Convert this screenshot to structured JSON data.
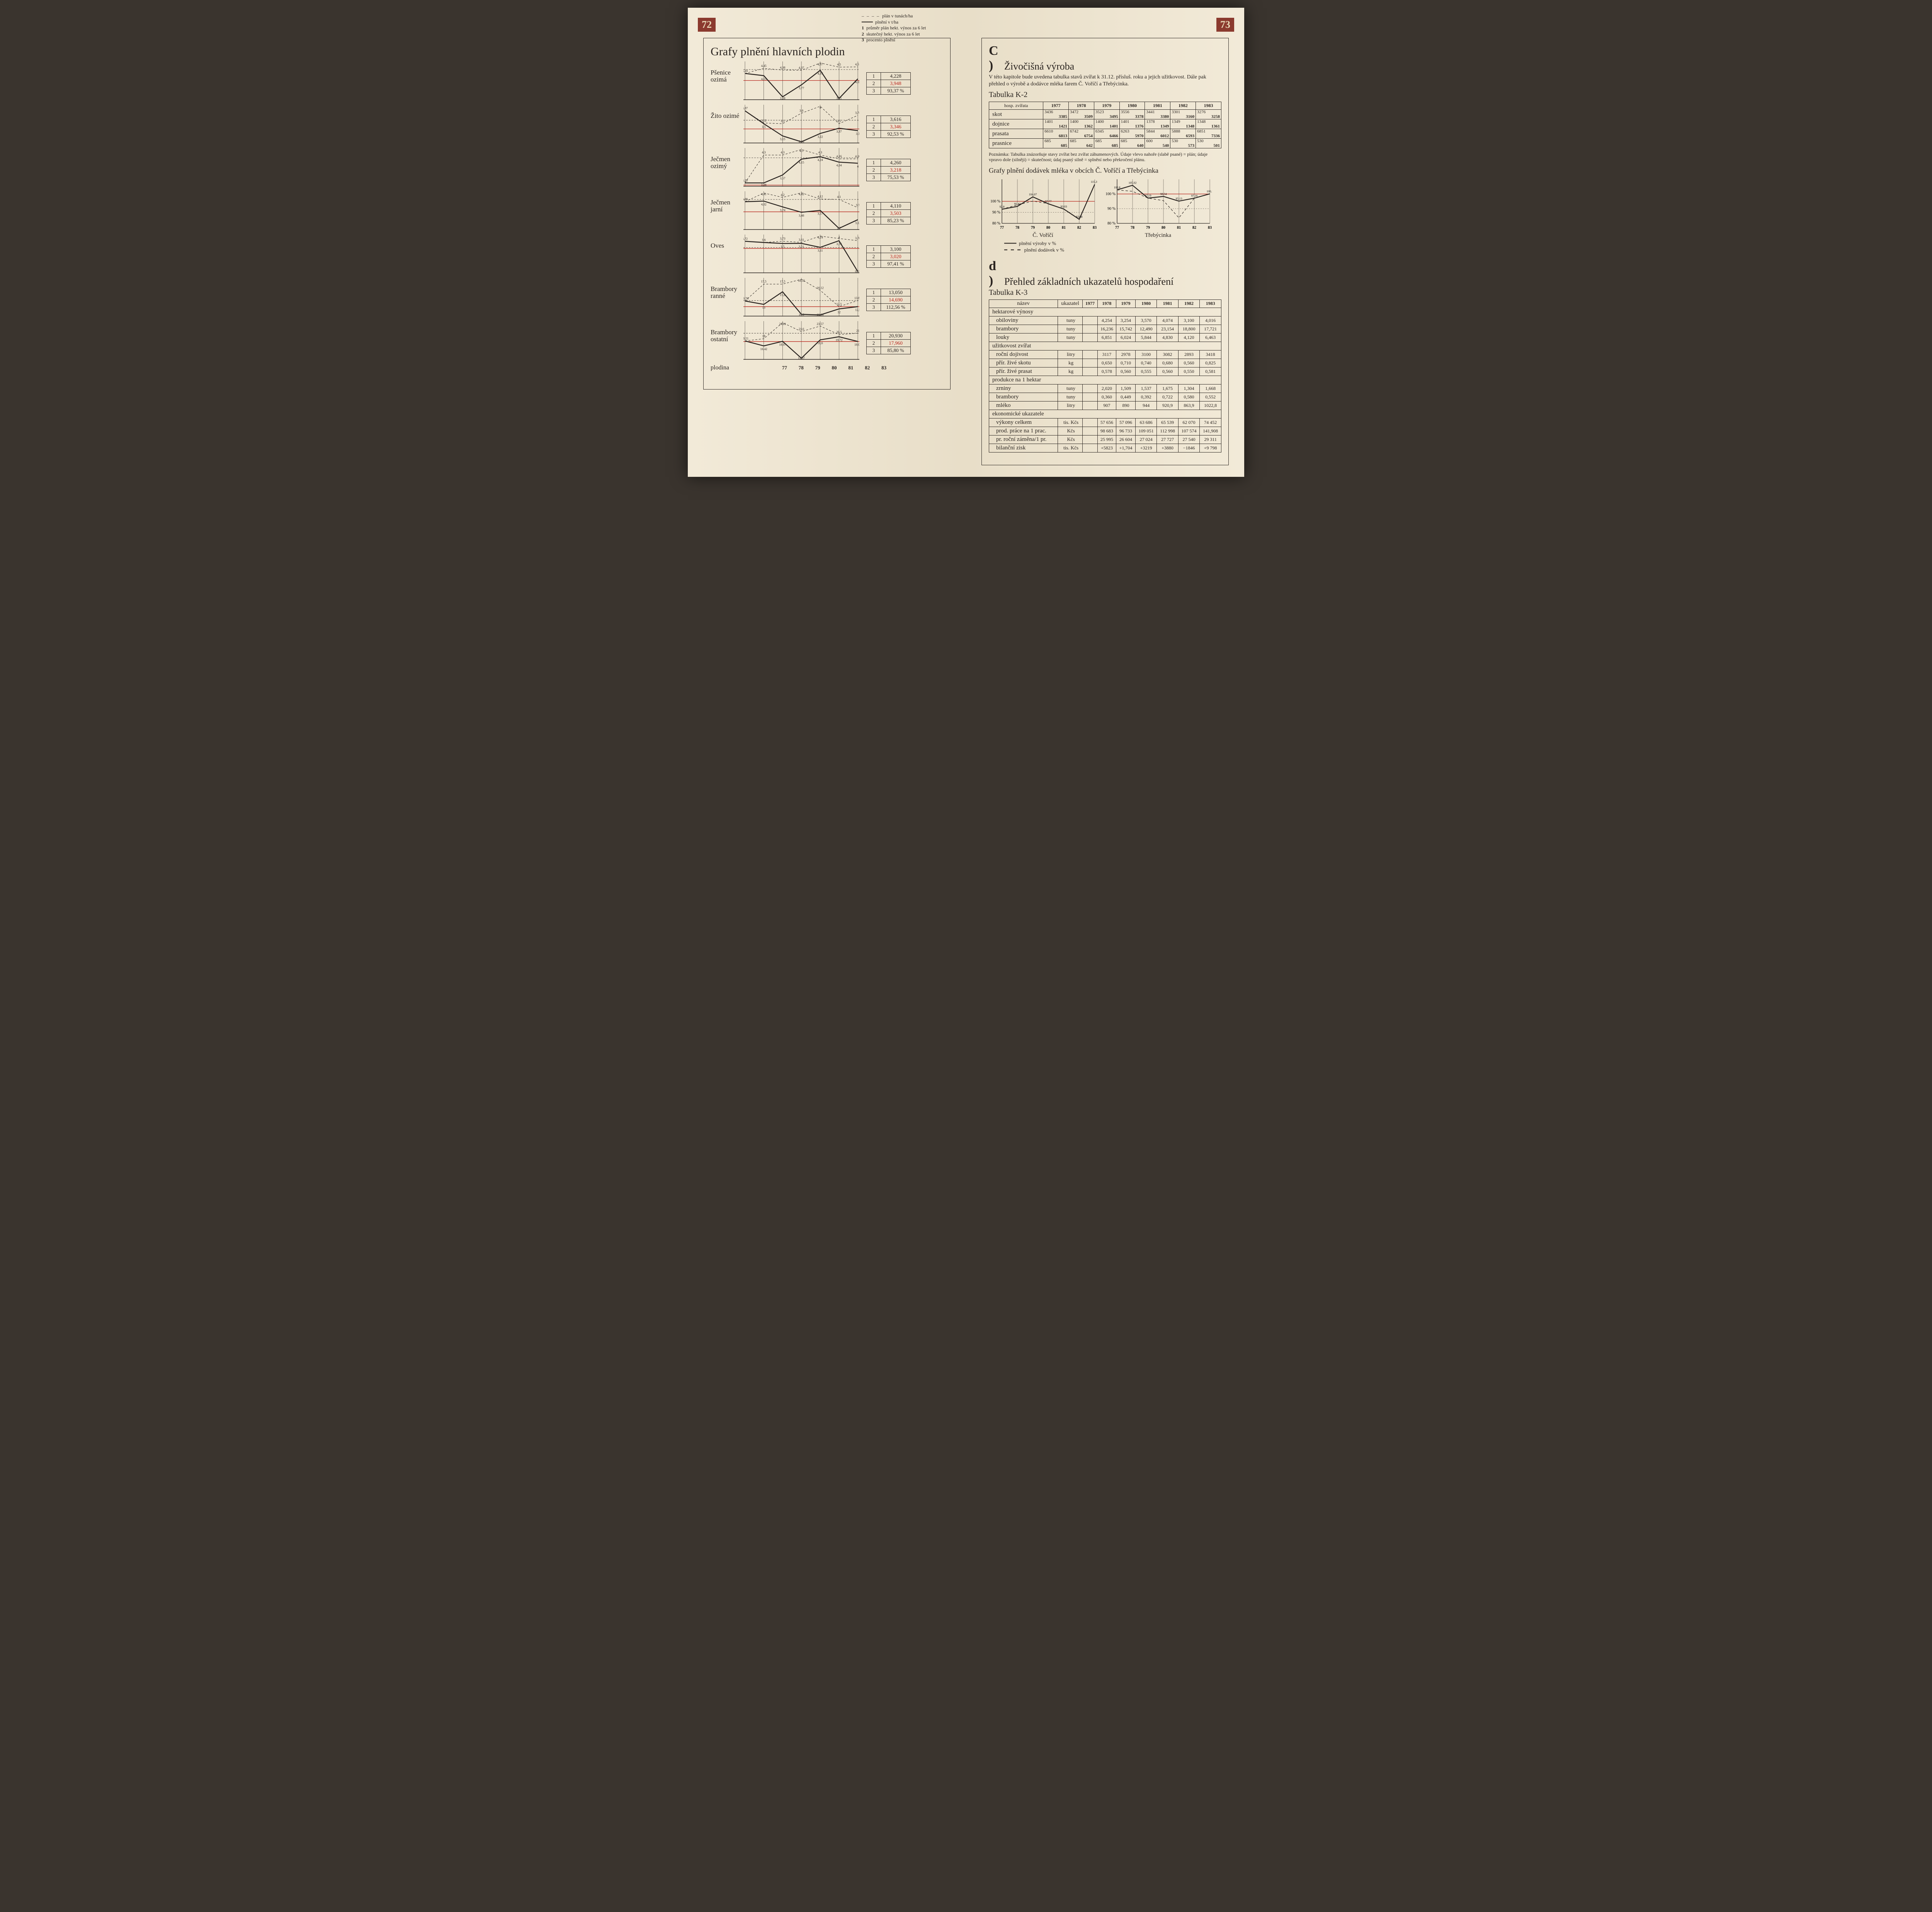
{
  "page_left_num": "72",
  "page_right_num": "73",
  "left_title": "Grafy plnění hlavních plodin",
  "left_legend": {
    "dash": "plán v tunách/ha",
    "solid": "plnění v t/ha",
    "l1": "průměr plán hekt. výnos za 6 let",
    "l2": "skutečný hekt. výnos za 6 let",
    "l3": "procento plnění"
  },
  "x_years": [
    "77",
    "78",
    "79",
    "80",
    "81",
    "82",
    "83"
  ],
  "x_label": "plodina",
  "crops": [
    {
      "name": "Pšenice ozimá",
      "plan": [
        4.24,
        4.45,
        4.38,
        4.37,
        4.67,
        4.5,
        4.51
      ],
      "actual": [
        4.24,
        4.15,
        3.28,
        3.77,
        4.37,
        3.21,
        4.02
      ],
      "ref_plan": 4.4,
      "ref_act": 3.95,
      "box": [
        "4,228",
        "3,948",
        "93,37 %"
      ]
    },
    {
      "name": "Žito ozimé",
      "plan": [
        3.87,
        3.52,
        3.5,
        3.8,
        4.0,
        3.5,
        3.74
      ],
      "actual": [
        3.87,
        3.5,
        3.15,
        2.98,
        3.22,
        3.37,
        3.3
      ],
      "ref_plan": 3.6,
      "ref_act": 3.35,
      "box": [
        "3,616",
        "3,346",
        "92,53 %"
      ]
    },
    {
      "name": "Ječmen ozimý",
      "plan": [
        3.28,
        4.3,
        4.3,
        4.5,
        4.3,
        4.16,
        4.16
      ],
      "actual": [
        3.28,
        3.28,
        3.57,
        4.15,
        4.24,
        4.04,
        4.0
      ],
      "ref_plan": 4.2,
      "ref_act": 3.2,
      "box": [
        "4,260",
        "3,218",
        "75,53 %"
      ]
    },
    {
      "name": "Ječmen jarní",
      "plan": [
        3.99,
        4.41,
        4.2,
        4.42,
        4.12,
        4.1,
        3.7
      ],
      "actual": [
        3.99,
        4.02,
        3.74,
        3.48,
        3.57,
        2.7,
        3.12
      ],
      "ref_plan": 4.1,
      "ref_act": 3.5,
      "box": [
        "4,110",
        "3,503",
        "85,23 %"
      ]
    },
    {
      "name": "Oves",
      "plan": [
        3.72,
        3.6,
        3.73,
        3.61,
        4.24,
        4.0,
        3.78
      ],
      "actual": [
        3.72,
        3.6,
        3.5,
        3.51,
        3.11,
        3.78,
        0.67
      ],
      "ref_plan": 3.1,
      "ref_act": 3.0,
      "box": [
        "3,100",
        "3,020",
        "97,41 %"
      ]
    },
    {
      "name": "Brambory ranné",
      "plan": [
        13.76,
        17.5,
        17.5,
        18.55,
        16.12,
        12.5,
        13.85
      ],
      "actual": [
        13.76,
        13.0,
        15.8,
        10.8,
        10.66,
        12.0,
        12.5
      ],
      "ref_plan": 13.85,
      "ref_act": 12.5,
      "box": [
        "13,050",
        "14,690",
        "112,56 %"
      ]
    },
    {
      "name": "Brambory ostatní",
      "plan": [
        18.21,
        19.0,
        24.81,
        21.6,
        23.57,
        20.5,
        21.0
      ],
      "actual": [
        18.21,
        16.42,
        18.07,
        11.97,
        18.6,
        19.72,
        18.02
      ],
      "ref_plan": 21.0,
      "ref_act": 18.0,
      "box": [
        "20,930",
        "17,960",
        "85,80 %"
      ]
    }
  ],
  "right": {
    "c_letter": "C )",
    "c_title": "Živočišná výroba",
    "c_intro": "V této kapitole bude uvedena tabulka stavů zvířat k 31.12. přísluš. roku a jejich užitkovost. Dále pak přehled o výrobě a dodávce mléka farem Č. Voříčí a Třebýcinka.",
    "k2_title": "Tabulka K-2",
    "k2_headers": [
      "hosp. zvířata",
      "1977",
      "1978",
      "1979",
      "1980",
      "1981",
      "1982",
      "1983"
    ],
    "k2_rows": [
      {
        "name": "skot",
        "cells": [
          [
            "3436",
            "3385"
          ],
          [
            "3472",
            "3509"
          ],
          [
            "3523",
            "3495"
          ],
          [
            "3556",
            "3378"
          ],
          [
            "3441",
            "3380"
          ],
          [
            "3301",
            "3160"
          ],
          [
            "3276",
            "3258"
          ]
        ]
      },
      {
        "name": "dojnice",
        "cells": [
          [
            "1401",
            "1421"
          ],
          [
            "1400",
            "1362"
          ],
          [
            "1400",
            "1401"
          ],
          [
            "1401",
            "1376"
          ],
          [
            "1378",
            "1349"
          ],
          [
            "1349",
            "1348"
          ],
          [
            "1348",
            "1361"
          ]
        ]
      },
      {
        "name": "prasata",
        "cells": [
          [
            "6610",
            "6813"
          ],
          [
            "6742",
            "6754"
          ],
          [
            "6345",
            "6466"
          ],
          [
            "6263",
            "5970"
          ],
          [
            "5844",
            "6012"
          ],
          [
            "5888",
            "6593"
          ],
          [
            "6851",
            "7336"
          ]
        ]
      },
      {
        "name": "prasnice",
        "cells": [
          [
            "685",
            "685"
          ],
          [
            "685",
            "642"
          ],
          [
            "685",
            "685"
          ],
          [
            "685",
            "640"
          ],
          [
            "600",
            "540"
          ],
          [
            "530",
            "573"
          ],
          [
            "530",
            "501"
          ]
        ]
      }
    ],
    "k2_note": "Poznámka: Tabulka znázorňuje stavy zvířat bez zvířat záhumenových. Údaje vlevo nahoře (slabě psané) = plán; údaje vpravo dole (silněji) = skutečnost; údaj psaný silně = splnění nebo překročení plánu.",
    "milk_title": "Grafy plnění dodávek mléka v obcích Č. Voříčí a Třebýcinka",
    "milk": [
      {
        "name": "Č. Voříčí",
        "prod": [
          92.8,
          95.42,
          104.07,
          97.77,
          93.03,
          83.68,
          115.37
        ],
        "deliv": [
          92.8,
          96.77,
          100.18,
          97.93,
          93.03,
          83.48,
          115.21
        ]
      },
      {
        "name": "Třebýcinka",
        "prod": [
          102.8,
          105.92,
          97.19,
          98.34,
          95.13,
          97.16,
          100.1
        ],
        "deliv": [
          102.8,
          101.81,
          97.19,
          95.48,
          83.75,
          97.16,
          100.1
        ]
      }
    ],
    "milk_ylabels": [
      "100 %",
      "90 %",
      "80 %"
    ],
    "milk_legend": {
      "prod": "plnění výroby v %",
      "deliv": "plnění dodávek v %"
    },
    "d_letter": "d )",
    "d_title": "Přehled základních ukazatelů hospodaření",
    "k3_title": "Tabulka K-3",
    "k3_headers": [
      "název",
      "ukazatel",
      "1977",
      "1978",
      "1979",
      "1980",
      "1981",
      "1982",
      "1983"
    ],
    "k3_sections": [
      {
        "head": "hektarové výnosy",
        "rows": [
          {
            "n": "obiloviny",
            "u": "tuny",
            "v": [
              "",
              "4,254",
              "3,254",
              "3,570",
              "4,074",
              "3,100",
              "4,016"
            ]
          },
          {
            "n": "brambory",
            "u": "tuny",
            "v": [
              "",
              "16,236",
              "15,742",
              "12,490",
              "23,154",
              "18,800",
              "17,721"
            ]
          },
          {
            "n": "louky",
            "u": "tuny",
            "v": [
              "",
              "6,851",
              "6,024",
              "5,844",
              "4,830",
              "4,120",
              "6,463"
            ]
          }
        ]
      },
      {
        "head": "užitkovost zvířat",
        "rows": [
          {
            "n": "roční dojivost",
            "u": "litry",
            "v": [
              "",
              "3117",
              "2978",
              "3100",
              "3082",
              "2893",
              "3418"
            ]
          },
          {
            "n": "přír. živé skotu",
            "u": "kg",
            "v": [
              "",
              "0,650",
              "0,710",
              "0,740",
              "0,680",
              "0,560",
              "0,825"
            ]
          },
          {
            "n": "přír. živé prasat",
            "u": "kg",
            "v": [
              "",
              "0,578",
              "0,560",
              "0,555",
              "0,560",
              "0,550",
              "0,581"
            ]
          }
        ]
      },
      {
        "head": "produkce na 1 hektar",
        "rows": [
          {
            "n": "zrniny",
            "u": "tuny",
            "v": [
              "",
              "2,020",
              "1,509",
              "1,537",
              "1,675",
              "1,304",
              "1,668"
            ]
          },
          {
            "n": "brambory",
            "u": "tuny",
            "v": [
              "",
              "0,360",
              "0,449",
              "0,392",
              "0,722",
              "0,580",
              "0,552"
            ]
          },
          {
            "n": "mléko",
            "u": "litry",
            "v": [
              "",
              "907",
              "890",
              "944",
              "920,9",
              "863,9",
              "1022,8"
            ]
          }
        ]
      },
      {
        "head": "ekonomické ukazatele",
        "rows": [
          {
            "n": "výkony celkem",
            "u": "tis. Kčs",
            "v": [
              "",
              "57 656",
              "57 096",
              "63 686",
              "65 539",
              "62 070",
              "74 452"
            ]
          },
          {
            "n": "prod. práce na 1 prac.",
            "u": "Kčs",
            "v": [
              "",
              "98 683",
              "96 733",
              "109 051",
              "112 998",
              "107 574",
              "141,908"
            ]
          },
          {
            "n": "pr. roční záměna/1 pr.",
            "u": "Kčs",
            "v": [
              "",
              "25 995",
              "26 604",
              "27 024",
              "27 727",
              "27 540",
              "29 311"
            ]
          },
          {
            "n": "bilanční zisk",
            "u": "tis. Kčs",
            "v": [
              "",
              "+5823",
              "+1,704",
              "+3219",
              "+3880",
              "−1846",
              "+9 798"
            ]
          }
        ]
      }
    ]
  },
  "colors": {
    "ink": "#2a2420",
    "red": "#b8231a",
    "paper": "#ede4d0"
  }
}
